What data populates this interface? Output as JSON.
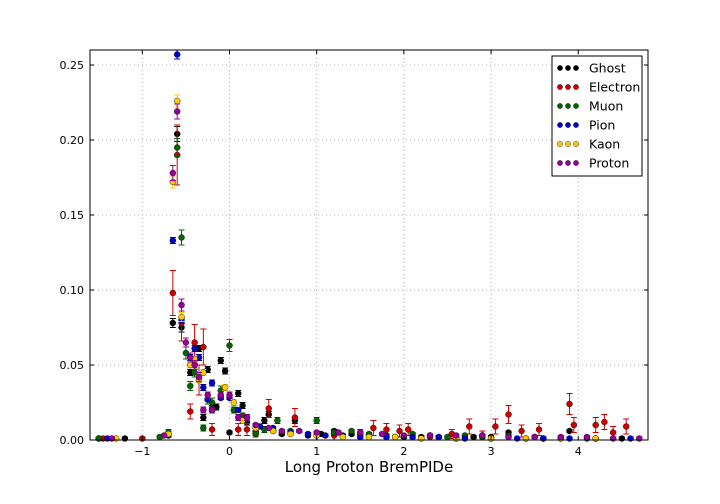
{
  "chart_data": {
    "type": "scatter",
    "title": "",
    "xlabel": "Long Proton BremPIDe",
    "ylabel": "",
    "xlim": [
      -1.6,
      4.8
    ],
    "ylim": [
      0,
      0.26
    ],
    "grid": true,
    "legend_position": "top-right",
    "xticks": [
      -1,
      0,
      1,
      2,
      3,
      4
    ],
    "xtick_labels": [
      "−1",
      "0",
      "1",
      "2",
      "3",
      "4"
    ],
    "yticks": [
      0,
      0.05,
      0.1,
      0.15,
      0.2,
      0.25
    ],
    "ytick_labels": [
      "0.00",
      "0.05",
      "0.10",
      "0.15",
      "0.20",
      "0.25"
    ],
    "series": [
      {
        "name": "Ghost",
        "color": "#000000",
        "x": [
          -1.5,
          -1.2,
          -0.7,
          -0.65,
          -0.6,
          -0.55,
          -0.45,
          -0.4,
          -0.35,
          -0.3,
          -0.25,
          -0.2,
          -0.15,
          -0.1,
          -0.05,
          0.0,
          0.1,
          0.15,
          0.2,
          0.3,
          0.4,
          0.45,
          0.5,
          0.6,
          0.75,
          0.9,
          1.05,
          1.2,
          1.4,
          1.6,
          1.8,
          2.0,
          2.2,
          2.4,
          2.6,
          2.8,
          3.0,
          3.2,
          3.4,
          3.6,
          3.9,
          4.2,
          4.5
        ],
        "y": [
          0.001,
          0.001,
          0.003,
          0.078,
          0.204,
          0.075,
          0.045,
          0.053,
          0.061,
          0.015,
          0.047,
          0.021,
          0.022,
          0.053,
          0.046,
          0.005,
          0.031,
          0.023,
          0.012,
          0.005,
          0.013,
          0.017,
          0.006,
          0.004,
          0.013,
          0.003,
          0.004,
          0.006,
          0.004,
          0.003,
          0.003,
          0.002,
          0.002,
          0.002,
          0.001,
          0.002,
          0.002,
          0.005,
          0.001,
          0.001,
          0.006,
          0.001,
          0.001
        ],
        "err": [
          0.001,
          0.001,
          0.001,
          0.003,
          0.005,
          0.003,
          0.002,
          0.002,
          0.002,
          0.002,
          0.002,
          0.002,
          0.002,
          0.002,
          0.002,
          0.001,
          0.002,
          0.002,
          0.002,
          0.001,
          0.002,
          0.002,
          0.001,
          0.001,
          0.002,
          0.001,
          0.001,
          0.001,
          0.001,
          0.001,
          0.001,
          0.001,
          0.001,
          0.001,
          0.001,
          0.001,
          0.001,
          0.001,
          0.001,
          0.001,
          0.001,
          0.001,
          0.001
        ]
      },
      {
        "name": "Electron",
        "color": "#cc0000",
        "x": [
          -1.45,
          -1.0,
          -0.65,
          -0.6,
          -0.55,
          -0.45,
          -0.4,
          -0.35,
          -0.3,
          -0.2,
          0.1,
          0.2,
          0.3,
          0.45,
          0.75,
          1.0,
          1.2,
          1.5,
          1.65,
          1.8,
          1.95,
          2.05,
          2.3,
          2.55,
          2.75,
          2.9,
          3.05,
          3.2,
          3.35,
          3.55,
          3.9,
          3.95,
          4.2,
          4.3,
          4.4,
          4.55
        ],
        "y": [
          0.001,
          0.001,
          0.098,
          0.19,
          0.078,
          0.019,
          0.065,
          0.04,
          0.062,
          0.007,
          0.007,
          0.007,
          0.006,
          0.021,
          0.015,
          0.003,
          0.003,
          0.004,
          0.008,
          0.007,
          0.006,
          0.007,
          0.002,
          0.004,
          0.009,
          0.003,
          0.009,
          0.017,
          0.006,
          0.007,
          0.024,
          0.01,
          0.01,
          0.012,
          0.005,
          0.009
        ],
        "err": [
          0.001,
          0.001,
          0.015,
          0.02,
          0.012,
          0.005,
          0.012,
          0.01,
          0.012,
          0.004,
          0.004,
          0.004,
          0.004,
          0.006,
          0.006,
          0.003,
          0.003,
          0.003,
          0.005,
          0.004,
          0.004,
          0.004,
          0.002,
          0.003,
          0.005,
          0.003,
          0.005,
          0.006,
          0.004,
          0.004,
          0.007,
          0.005,
          0.005,
          0.005,
          0.004,
          0.005
        ]
      },
      {
        "name": "Muon",
        "color": "#006600",
        "x": [
          -1.5,
          -0.8,
          -0.7,
          -0.6,
          -0.55,
          -0.5,
          -0.45,
          -0.4,
          -0.3,
          -0.25,
          -0.2,
          -0.1,
          0.0,
          0.05,
          0.15,
          0.3,
          0.4,
          0.55,
          0.7,
          1.0,
          1.2,
          1.4,
          1.6,
          1.9,
          2.1,
          2.3,
          2.5,
          2.7,
          2.9,
          3.2,
          3.5,
          3.8,
          4.1
        ],
        "y": [
          0.001,
          0.002,
          0.005,
          0.195,
          0.135,
          0.058,
          0.036,
          0.045,
          0.008,
          0.027,
          0.025,
          0.033,
          0.063,
          0.02,
          0.016,
          0.004,
          0.007,
          0.013,
          0.006,
          0.013,
          0.005,
          0.006,
          0.004,
          0.002,
          0.004,
          0.003,
          0.002,
          0.003,
          0.002,
          0.003,
          0.002,
          0.001,
          0.001
        ],
        "err": [
          0.001,
          0.001,
          0.002,
          0.006,
          0.005,
          0.004,
          0.003,
          0.003,
          0.002,
          0.003,
          0.003,
          0.003,
          0.004,
          0.002,
          0.002,
          0.001,
          0.002,
          0.002,
          0.001,
          0.002,
          0.001,
          0.001,
          0.001,
          0.001,
          0.001,
          0.001,
          0.001,
          0.001,
          0.001,
          0.001,
          0.001,
          0.001,
          0.001
        ]
      },
      {
        "name": "Pion",
        "color": "#0000cc",
        "x": [
          -1.4,
          -0.65,
          -0.6,
          -0.55,
          -0.45,
          -0.4,
          -0.35,
          -0.3,
          -0.25,
          -0.2,
          -0.1,
          0.0,
          0.1,
          0.2,
          0.35,
          0.5,
          0.7,
          0.9,
          1.1,
          1.3,
          1.5,
          1.8,
          2.1,
          2.4,
          2.7,
          3.0,
          3.3,
          3.6,
          3.9,
          4.2,
          4.6
        ],
        "y": [
          0.001,
          0.133,
          0.257,
          0.08,
          0.055,
          0.061,
          0.055,
          0.035,
          0.027,
          0.038,
          0.028,
          0.028,
          0.02,
          0.015,
          0.009,
          0.008,
          0.005,
          0.004,
          0.003,
          0.003,
          0.002,
          0.002,
          0.002,
          0.002,
          0.001,
          0.001,
          0.001,
          0.001,
          0.001,
          0.001,
          0.001
        ],
        "err": [
          0.001,
          0.002,
          0.003,
          0.002,
          0.002,
          0.002,
          0.002,
          0.002,
          0.001,
          0.002,
          0.001,
          0.001,
          0.001,
          0.001,
          0.001,
          0.001,
          0.001,
          0.001,
          0.001,
          0.001,
          0.001,
          0.001,
          0.001,
          0.001,
          0.001,
          0.001,
          0.001,
          0.001,
          0.001,
          0.001,
          0.001
        ]
      },
      {
        "name": "Kaon",
        "color": "#ffcc00",
        "x": [
          -1.3,
          -0.7,
          -0.65,
          -0.6,
          -0.55,
          -0.45,
          -0.4,
          -0.35,
          -0.3,
          -0.2,
          -0.05,
          0.05,
          0.15,
          0.3,
          0.5,
          0.7,
          1.0,
          1.3,
          1.6,
          1.9,
          2.2,
          2.6,
          3.0,
          3.4,
          3.8,
          4.2
        ],
        "y": [
          0.001,
          0.004,
          0.172,
          0.226,
          0.082,
          0.05,
          0.054,
          0.04,
          0.045,
          0.02,
          0.035,
          0.025,
          0.013,
          0.008,
          0.006,
          0.004,
          0.003,
          0.002,
          0.002,
          0.002,
          0.001,
          0.001,
          0.001,
          0.001,
          0.001,
          0.001
        ],
        "err": [
          0.001,
          0.001,
          0.004,
          0.004,
          0.003,
          0.002,
          0.002,
          0.002,
          0.002,
          0.002,
          0.002,
          0.002,
          0.001,
          0.001,
          0.001,
          0.001,
          0.001,
          0.001,
          0.001,
          0.001,
          0.001,
          0.001,
          0.001,
          0.001,
          0.001,
          0.001
        ]
      },
      {
        "name": "Proton",
        "color": "#990099",
        "x": [
          -1.35,
          -0.75,
          -0.65,
          -0.6,
          -0.55,
          -0.5,
          -0.45,
          -0.4,
          -0.35,
          -0.3,
          -0.25,
          -0.2,
          -0.1,
          0.0,
          0.1,
          0.2,
          0.3,
          0.45,
          0.6,
          0.8,
          1.0,
          1.25,
          1.5,
          1.75,
          2.0,
          2.3,
          2.6,
          2.9,
          3.2,
          3.5,
          3.8,
          4.1,
          4.4,
          4.7
        ],
        "y": [
          0.001,
          0.003,
          0.178,
          0.219,
          0.09,
          0.065,
          0.055,
          0.05,
          0.042,
          0.02,
          0.03,
          0.02,
          0.03,
          0.03,
          0.015,
          0.015,
          0.01,
          0.008,
          0.006,
          0.006,
          0.005,
          0.005,
          0.005,
          0.004,
          0.003,
          0.003,
          0.003,
          0.003,
          0.002,
          0.002,
          0.002,
          0.002,
          0.001,
          0.001
        ],
        "err": [
          0.001,
          0.001,
          0.005,
          0.005,
          0.004,
          0.003,
          0.003,
          0.003,
          0.003,
          0.002,
          0.002,
          0.002,
          0.002,
          0.002,
          0.002,
          0.002,
          0.001,
          0.001,
          0.001,
          0.001,
          0.001,
          0.001,
          0.001,
          0.001,
          0.001,
          0.001,
          0.001,
          0.001,
          0.001,
          0.001,
          0.001,
          0.001,
          0.001,
          0.001
        ]
      }
    ]
  }
}
